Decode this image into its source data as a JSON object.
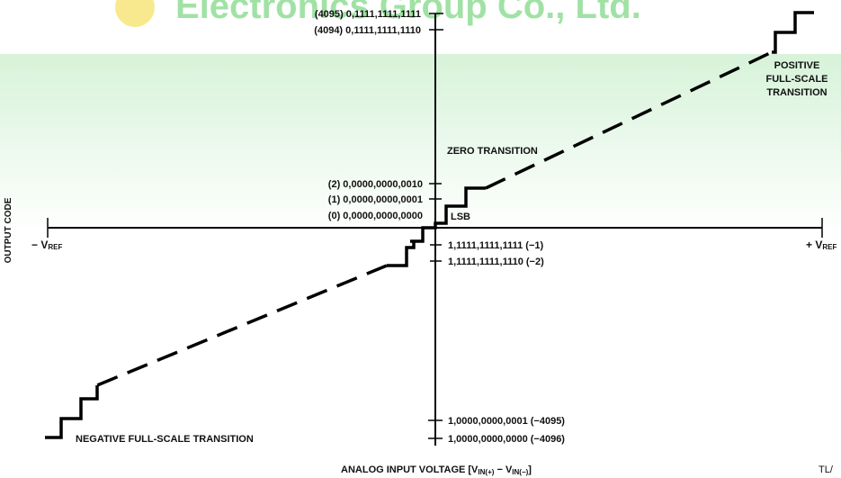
{
  "watermark": {
    "text": "Electronics Group Co., Ltd.",
    "colors": {
      "green": "#2fbf3a",
      "yellow": "#f5e26a"
    }
  },
  "axes": {
    "x_title_main": "ANALOG INPUT VOLTAGE [V",
    "x_title_sub1": "IN(+)",
    "x_title_mid": " − V",
    "x_title_sub2": "IN(−)",
    "x_title_end": "]",
    "y_title": "OUTPUT CODE",
    "neg_ref_main": "− V",
    "neg_ref_sub": "REF",
    "pos_ref_main": "+ V",
    "pos_ref_sub": "REF"
  },
  "code_labels": {
    "c4095": "(4095) 0,1111,1111,1111",
    "c4094": "(4094) 0,1111,1111,1110",
    "c2": "(2) 0,0000,0000,0010",
    "c1": "(1) 0,0000,0000,0001",
    "c0": "(0) 0,0000,0000,0000",
    "cm1": "1,1111,1111,1111 (−1)",
    "cm2": "1,1111,1111,1110 (−2)",
    "cm4095": "1,0000,0000,0001 (−4095)",
    "cm4096": "1,0000,0000,0000 (−4096)"
  },
  "annotations": {
    "zero_transition": "ZERO TRANSITION",
    "lsb": "LSB",
    "positive_fs_1": "POSITIVE",
    "positive_fs_2": "FULL-SCALE",
    "positive_fs_3": "TRANSITION",
    "negative_fs": "NEGATIVE FULL-SCALE TRANSITION",
    "corner_ref": "TL/"
  }
}
